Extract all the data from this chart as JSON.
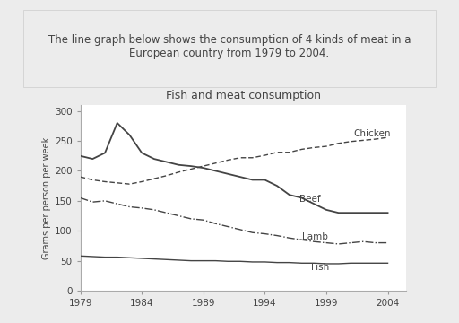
{
  "title": "Fish and meat consumption",
  "ylabel": "Grams per person per week",
  "xlabel": "",
  "description_line1": "The line graph below shows the consumption of 4 kinds of meat in a",
  "description_line2": "European country from 1979 to 2004.",
  "years": [
    1979,
    1980,
    1981,
    1982,
    1983,
    1984,
    1985,
    1986,
    1987,
    1988,
    1989,
    1990,
    1991,
    1992,
    1993,
    1994,
    1995,
    1996,
    1997,
    1998,
    1999,
    2000,
    2001,
    2002,
    2003,
    2004
  ],
  "beef": [
    225,
    220,
    230,
    280,
    260,
    230,
    220,
    215,
    210,
    208,
    205,
    200,
    195,
    190,
    185,
    185,
    175,
    160,
    155,
    145,
    135,
    130,
    130,
    130,
    130,
    130
  ],
  "lamb": [
    155,
    148,
    150,
    145,
    140,
    138,
    135,
    130,
    125,
    120,
    118,
    112,
    107,
    102,
    97,
    95,
    92,
    88,
    85,
    82,
    80,
    78,
    80,
    82,
    80,
    80
  ],
  "chicken": [
    190,
    185,
    182,
    180,
    178,
    182,
    187,
    192,
    198,
    203,
    208,
    213,
    218,
    222,
    222,
    226,
    231,
    231,
    236,
    239,
    241,
    246,
    249,
    251,
    253,
    256
  ],
  "fish": [
    58,
    57,
    56,
    56,
    55,
    54,
    53,
    52,
    51,
    50,
    50,
    50,
    49,
    49,
    48,
    48,
    47,
    47,
    46,
    46,
    45,
    45,
    46,
    46,
    46,
    46
  ],
  "ylim": [
    0,
    310
  ],
  "xticks": [
    1979,
    1984,
    1989,
    1994,
    1999,
    2004
  ],
  "yticks": [
    0,
    50,
    100,
    150,
    200,
    250,
    300
  ],
  "bg_color": "#ececec",
  "plot_bg": "#ffffff",
  "description_bg": "#e8e8e8",
  "line_color": "#444444",
  "text_color": "#444444",
  "title_fontsize": 9,
  "axis_fontsize": 7.5,
  "label_fontsize": 7.5,
  "desc_fontsize": 8.5
}
